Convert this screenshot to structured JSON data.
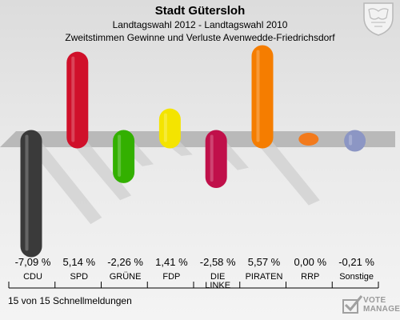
{
  "header": {
    "title": "Stadt Gütersloh",
    "subtitle_1": "Landtagswahl 2012 - Landtagswahl 2010",
    "subtitle_2": "Zweitstimmen Gewinne und Verluste Avenwedde-Friedrichsdorf"
  },
  "footer": {
    "text": "15 von 15 Schnellmeldungen"
  },
  "logo": {
    "line1": "VOTE",
    "line2": "MANAGER",
    "icon": "vote-check-icon"
  },
  "crest": {
    "icon": "city-crest-icon"
  },
  "chart_data": {
    "type": "bar",
    "categories": [
      "CDU",
      "SPD",
      "GRÜNE",
      "FDP",
      "DIE LINKE",
      "PIRATEN",
      "RRP",
      "Sonstige"
    ],
    "category_lines": [
      [
        "CDU"
      ],
      [
        "SPD"
      ],
      [
        "GRÜNE"
      ],
      [
        "FDP"
      ],
      [
        "DIE",
        "LINKE"
      ],
      [
        "PIRATEN"
      ],
      [
        "RRP"
      ],
      [
        "Sonstige"
      ]
    ],
    "values": [
      -7.09,
      5.14,
      -2.26,
      1.41,
      -2.58,
      5.57,
      0.0,
      -0.21
    ],
    "value_labels": [
      "-7,09 %",
      "5,14 %",
      "-2,26 %",
      "1,41 %",
      "-2,58 %",
      "5,57 %",
      "0,00 %",
      "-0,21 %"
    ],
    "colors": [
      "#3a3a3a",
      "#d0102a",
      "#33b000",
      "#f4e400",
      "#c0104a",
      "#f57d00",
      "#f27a1c",
      "#8c96c4"
    ],
    "ylim": [
      -7.09,
      5.57
    ],
    "legend": "none",
    "grid": false
  }
}
